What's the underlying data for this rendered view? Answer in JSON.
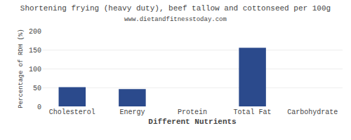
{
  "chart_data": {
    "type": "bar",
    "title": "Shortening frying (heavy duty), beef tallow and cottonseed per 100g",
    "subtitle": "www.dietandfitnesstoday.com",
    "xlabel": "Different Nutrients",
    "ylabel": "Percentage of RDH (%)",
    "categories": [
      "Cholesterol",
      "Energy",
      "Protein",
      "Total Fat",
      "Carbohydrate"
    ],
    "values": [
      51,
      46,
      0,
      155,
      0
    ],
    "color": "#2b4a8c",
    "ylim": [
      0,
      200
    ],
    "yticks": [
      0,
      50,
      100,
      150,
      200
    ],
    "grid": true
  }
}
